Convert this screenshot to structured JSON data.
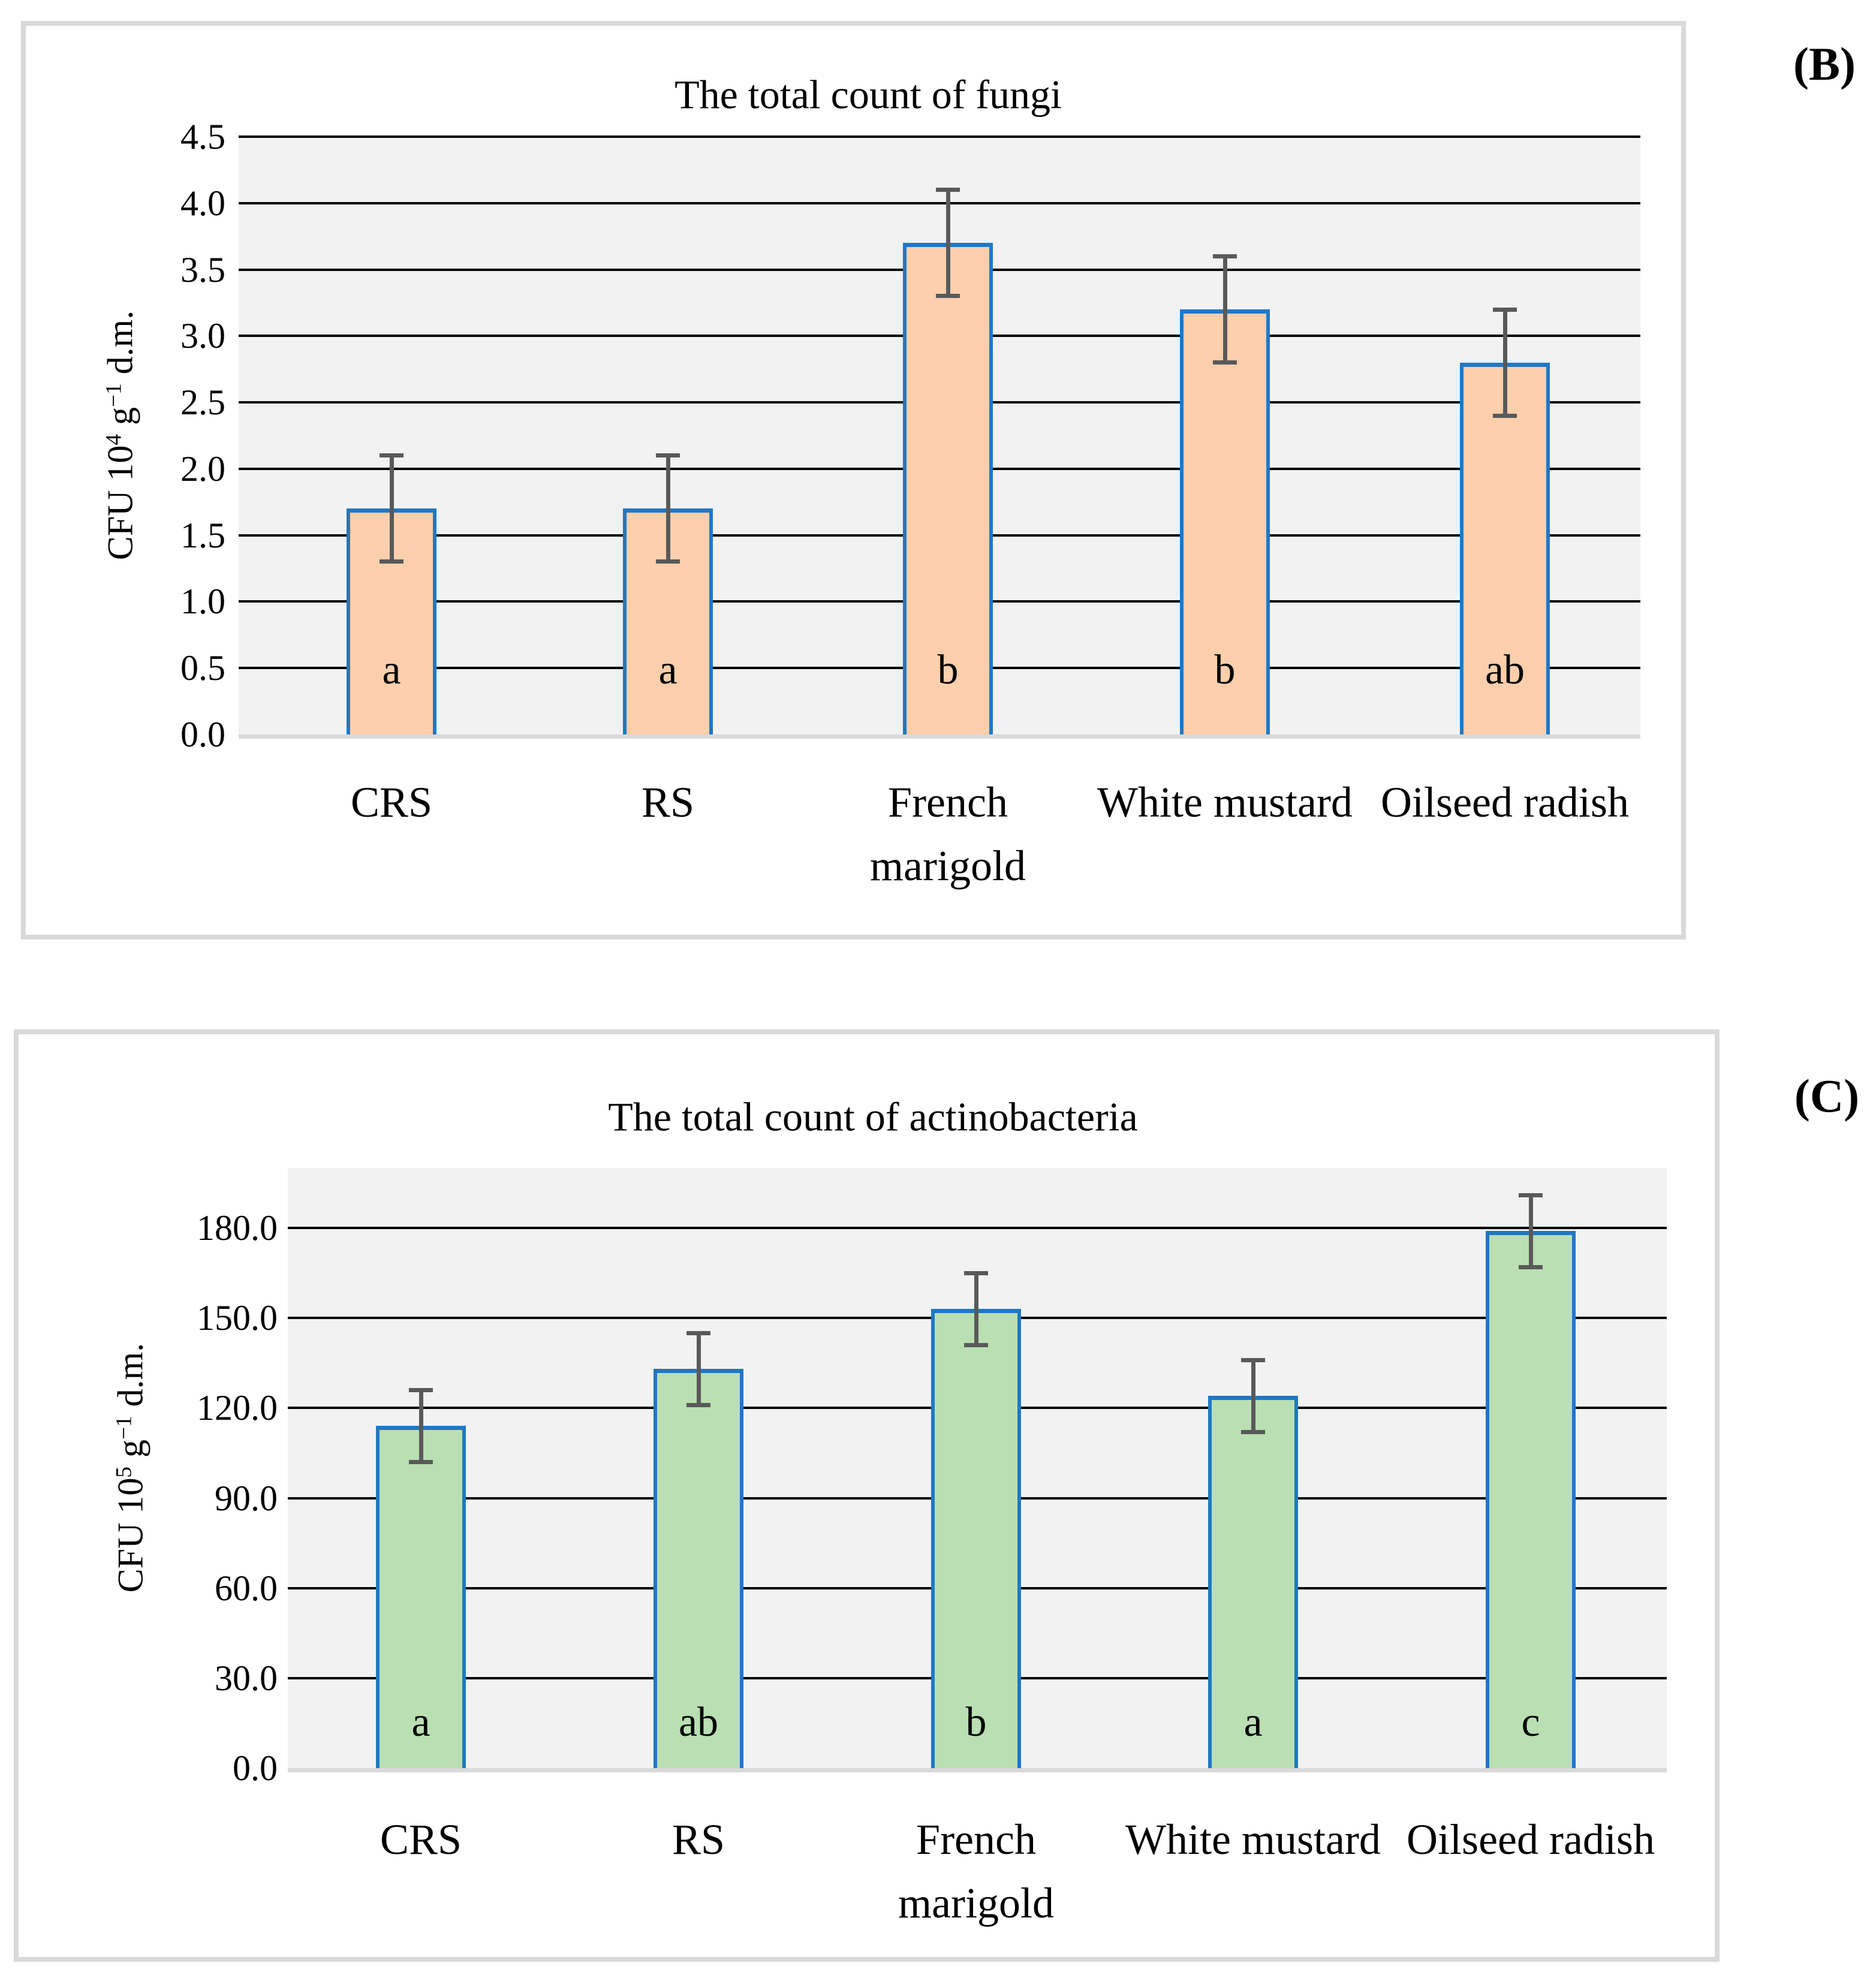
{
  "page": {
    "background": "#ffffff"
  },
  "colors": {
    "plot_background": "#F2F2F2",
    "gridline": "#000000",
    "axis_line": "#D9D9D9",
    "panel_border": "#D9D9D9",
    "error_bar": "#595959",
    "text": "#000000",
    "fungi_bar_fill": "#FDCFAC",
    "actino_bar_fill": "#B9DFB3",
    "bar_border": "#1F78C5"
  },
  "chart_data": [
    {
      "type": "bar",
      "panel_label": "(B)",
      "title": "The total count of fungi",
      "ylabel_parts": [
        {
          "t": "CFU 10"
        },
        {
          "t": "4",
          "sup": true
        },
        {
          "t": " g"
        },
        {
          "t": "−1",
          "sup": true
        },
        {
          "t": " d.m."
        }
      ],
      "categories": [
        "CRS",
        "RS",
        "French marigold",
        "White mustard",
        "Oilseed radish"
      ],
      "category_lines": [
        [
          "CRS"
        ],
        [
          "RS"
        ],
        [
          "French",
          "marigold"
        ],
        [
          "White mustard"
        ],
        [
          "Oilseed radish"
        ]
      ],
      "values": [
        1.7,
        1.7,
        3.7,
        3.2,
        2.8
      ],
      "errors": [
        0.4,
        0.4,
        0.4,
        0.4,
        0.4
      ],
      "significance_letters": [
        "a",
        "a",
        "b",
        "b",
        "ab"
      ],
      "yticks": [
        0,
        0.5,
        1,
        1.5,
        2,
        2.5,
        3,
        3.5,
        4,
        4.5
      ],
      "ytick_labels": [
        "0.0",
        "0.5",
        "1.0",
        "1.5",
        "2.0",
        "2.5",
        "3.0",
        "3.5",
        "4.0",
        "4.5"
      ],
      "ylim": [
        0,
        4.5
      ],
      "bar_fill": "#FDCFAC",
      "bar_border": "#1F78C5",
      "grid": true,
      "legend": false
    },
    {
      "type": "bar",
      "panel_label": "(C)",
      "title": "The total count of actinobacteria",
      "ylabel_parts": [
        {
          "t": "CFU 10"
        },
        {
          "t": "5",
          "sup": true
        },
        {
          "t": " g"
        },
        {
          "t": "−1",
          "sup": true
        },
        {
          "t": " d.m."
        }
      ],
      "categories": [
        "CRS",
        "RS",
        "French marigold",
        "White mustard",
        "Oilseed radish"
      ],
      "category_lines": [
        [
          "CRS"
        ],
        [
          "RS"
        ],
        [
          "French",
          "marigold"
        ],
        [
          "White mustard"
        ],
        [
          "Oilseed radish"
        ]
      ],
      "values": [
        114,
        133,
        153,
        124,
        179
      ],
      "errors": [
        12,
        12,
        12,
        12,
        12
      ],
      "significance_letters": [
        "a",
        "ab",
        "b",
        "a",
        "c"
      ],
      "yticks": [
        0,
        30,
        60,
        90,
        120,
        150,
        180
      ],
      "ytick_labels": [
        "0.0",
        "30.0",
        "60.0",
        "90.0",
        "120.0",
        "150.0",
        "180.0"
      ],
      "ylim": [
        0,
        200
      ],
      "bar_fill": "#B9DFB3",
      "bar_border": "#1F78C5",
      "grid": true,
      "legend": false
    }
  ]
}
